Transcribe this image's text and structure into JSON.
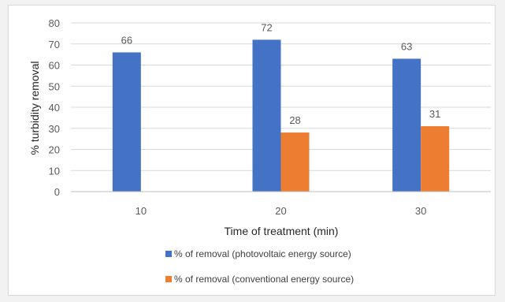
{
  "chart_data": {
    "type": "bar",
    "categories": [
      "10",
      "20",
      "30"
    ],
    "series": [
      {
        "name": "% of removal (photovoltaic energy source)",
        "values": [
          66,
          72,
          63
        ],
        "labels": [
          "66",
          "72",
          "63"
        ],
        "color": "#4472c4"
      },
      {
        "name": "% of removal (conventional energy source)",
        "values": [
          null,
          28,
          31
        ],
        "labels": [
          "",
          "28",
          "31"
        ],
        "color": "#ed7d31"
      }
    ],
    "xlabel": "Time of treatment (min)",
    "ylabel": "% turbidity removal",
    "ylim": [
      0,
      80
    ],
    "yticks": [
      "0",
      "10",
      "20",
      "30",
      "40",
      "50",
      "60",
      "70",
      "80"
    ],
    "grid": true,
    "legend": "bottom"
  }
}
